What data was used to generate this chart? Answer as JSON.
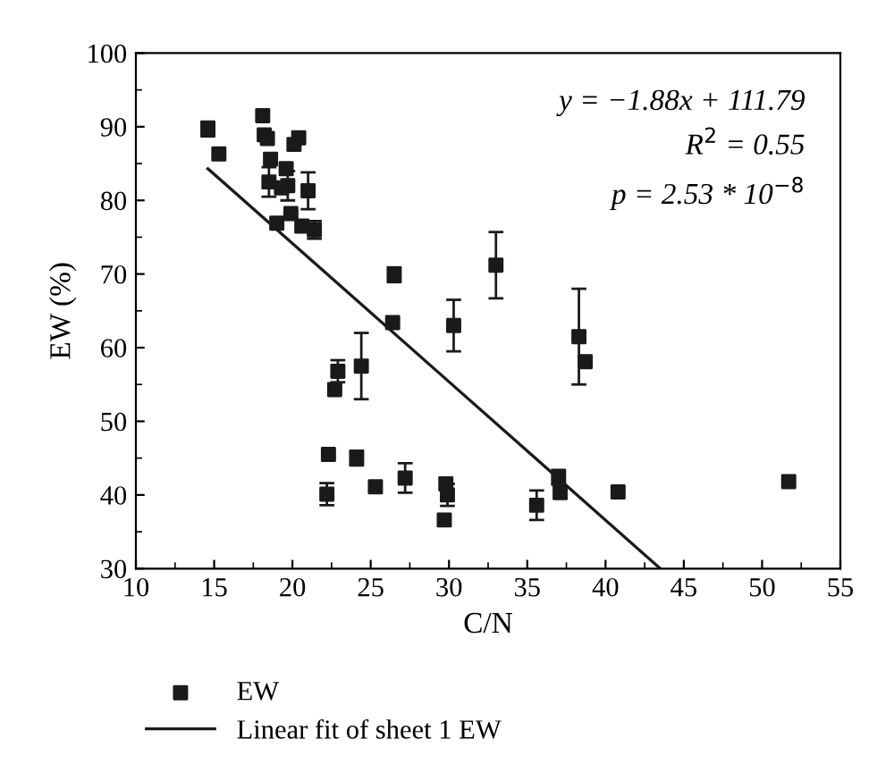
{
  "chart_data": {
    "type": "scatter",
    "xlabel": "C/N",
    "ylabel": "EW (%)",
    "xlim": [
      10,
      55
    ],
    "ylim": [
      30,
      100
    ],
    "xticks": [
      10,
      15,
      20,
      25,
      30,
      35,
      40,
      45,
      50,
      55
    ],
    "yticks": [
      30,
      40,
      50,
      60,
      70,
      80,
      90,
      100
    ],
    "legend": "bottom",
    "grid": false,
    "annotations": [
      "y = −1.88x + 111.79",
      "R$^{2}$ = 0.55",
      "p = 2.53 * 10$^{−8}$"
    ],
    "series": [
      {
        "name": "EW",
        "marker": "square",
        "color": "#1a1a1a",
        "x": [
          14.6,
          15.3,
          18.1,
          18.2,
          18.4,
          18.5,
          18.6,
          19.0,
          19.3,
          19.6,
          19.7,
          19.9,
          20.1,
          20.4,
          20.6,
          21.0,
          21.4,
          22.2,
          22.3,
          22.7,
          22.9,
          24.1,
          24.4,
          25.3,
          26.4,
          26.5,
          27.2,
          29.7,
          29.8,
          29.9,
          30.3,
          33.0,
          35.6,
          37.0,
          37.1,
          38.3,
          38.7,
          40.8,
          51.7
        ],
        "values": [
          89.7,
          86.3,
          91.5,
          88.9,
          88.4,
          82.5,
          85.6,
          76.9,
          81.7,
          84.3,
          82.0,
          78.2,
          87.6,
          88.5,
          76.5,
          81.3,
          76.0,
          40.1,
          45.5,
          54.3,
          56.8,
          45.0,
          57.5,
          41.1,
          63.4,
          69.9,
          42.3,
          36.6,
          41.5,
          40.0,
          63.0,
          71.2,
          38.6,
          42.4,
          40.3,
          61.5,
          58.1,
          40.4,
          41.8
        ],
        "errors": [
          1.0,
          null,
          null,
          null,
          null,
          2.0,
          null,
          null,
          null,
          null,
          2.0,
          null,
          null,
          null,
          null,
          2.5,
          1.2,
          1.5,
          null,
          null,
          1.5,
          1.0,
          4.5,
          null,
          null,
          1.0,
          2.0,
          null,
          null,
          1.5,
          3.5,
          4.5,
          2.0,
          1.0,
          null,
          6.5,
          null,
          null,
          null
        ]
      },
      {
        "name": "Linear fit of sheet 1 EW",
        "type": "line",
        "marker": "none",
        "line_style": "solid",
        "color": "#1a1a1a",
        "x": [
          14.6,
          43.5
        ],
        "values": [
          84.3,
          30.0
        ]
      }
    ]
  }
}
